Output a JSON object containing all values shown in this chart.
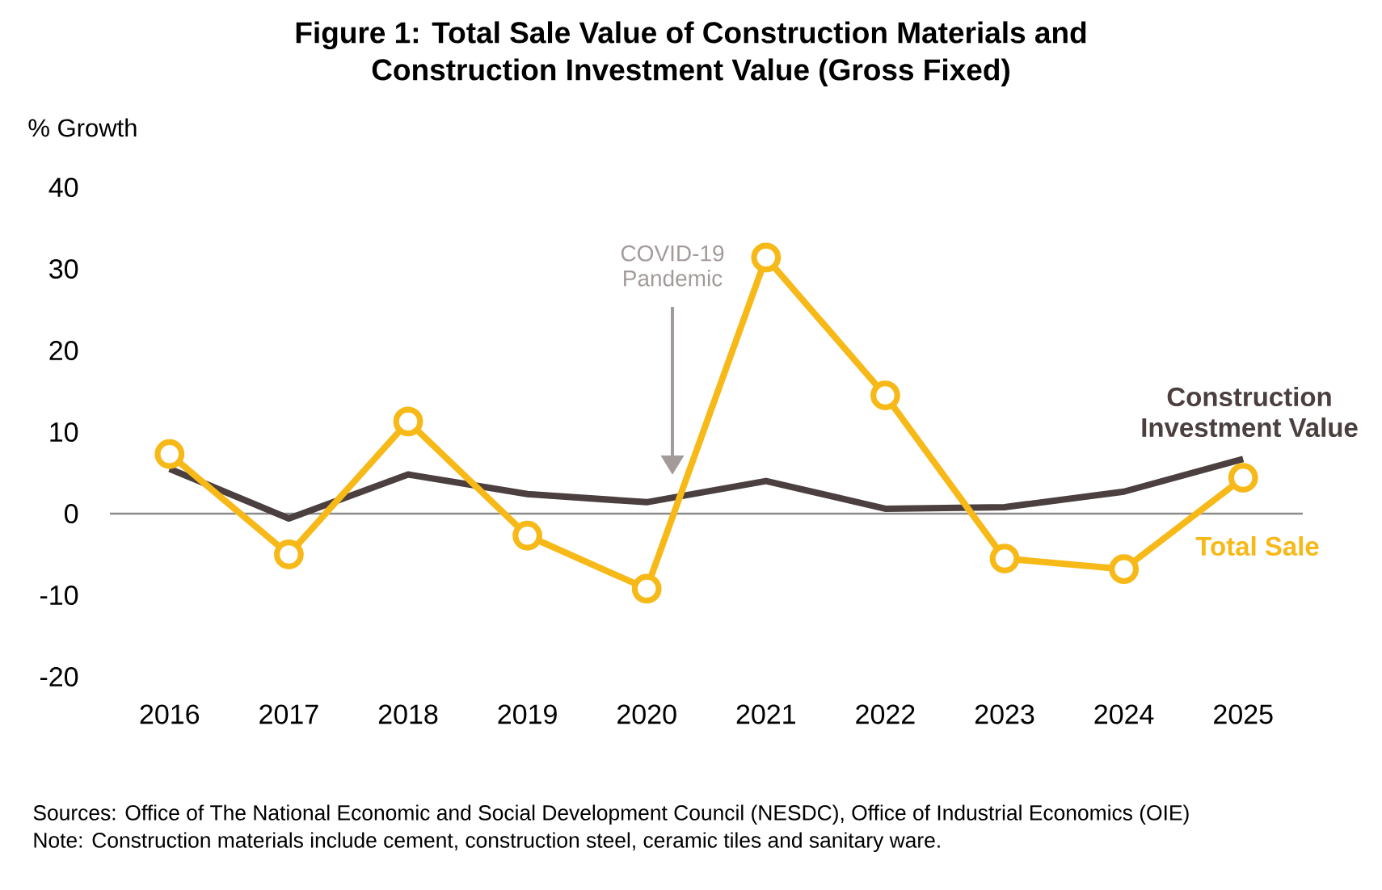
{
  "chart_data": {
    "type": "line",
    "title": "Figure 1: Total Sale Value of Construction Materials and Construction Investment Value (Gross Fixed)",
    "ylabel": "% Growth",
    "categories": [
      "2016",
      "2017",
      "2018",
      "2019",
      "2020",
      "2021",
      "2022",
      "2023",
      "2024",
      "2025"
    ],
    "series": [
      {
        "name": "Construction Investment Value",
        "color": "#4b3f3f",
        "marker": "none",
        "values": [
          5.5,
          -0.6,
          4.8,
          2.4,
          1.4,
          4.0,
          0.6,
          0.8,
          2.7,
          6.7
        ]
      },
      {
        "name": "Total Sale",
        "color": "#f7b918",
        "marker": "circle",
        "values": [
          7.3,
          -5.0,
          11.3,
          -2.7,
          -9.2,
          31.4,
          14.5,
          -5.5,
          -6.8,
          4.4
        ]
      }
    ],
    "ylim": [
      -20,
      40
    ],
    "yticks": [
      -20,
      -10,
      0,
      10,
      20,
      30,
      40
    ],
    "legend": false,
    "ref_lines": [
      {
        "axis": "y",
        "value": 0,
        "color": "#8c8c8c"
      }
    ],
    "annotations": [
      "COVID-19 Pandemic",
      "Sources: Office of The National Economic and Social Development Council (NESDC), Office of Industrial Economics (OIE)",
      "Note: Construction materials include cement, construction steel, ceramic tiles and sanitary ware."
    ]
  }
}
